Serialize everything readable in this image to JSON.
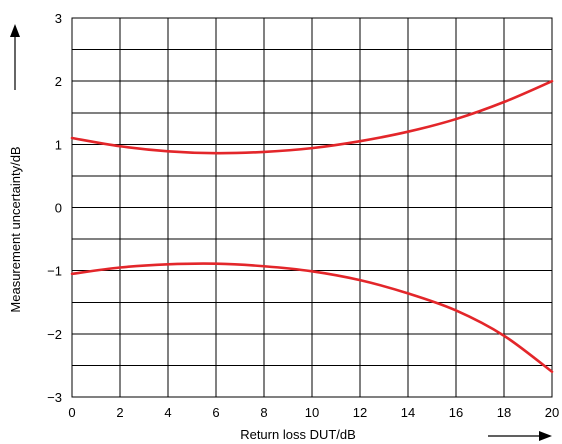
{
  "chart_data": {
    "type": "line",
    "xlabel": "Return loss DUT/dB",
    "ylabel": "Measurement uncertainty/dB",
    "xlim": [
      0,
      20
    ],
    "ylim": [
      -3,
      3
    ],
    "x_ticks": [
      "0",
      "2",
      "4",
      "6",
      "8",
      "10",
      "12",
      "14",
      "16",
      "18",
      "20"
    ],
    "y_ticks": [
      "3",
      "2",
      "1",
      "0",
      "−1",
      "−2",
      "−3"
    ],
    "grid": true,
    "series_color": "#e3262a",
    "series": [
      {
        "x": [
          0,
          2,
          4,
          6,
          8,
          10,
          12,
          14,
          16,
          18,
          20
        ],
        "y": [
          1.1,
          0.97,
          0.89,
          0.86,
          0.88,
          0.94,
          1.05,
          1.2,
          1.4,
          1.67,
          2.0
        ]
      },
      {
        "x": [
          0,
          2,
          4,
          6,
          8,
          10,
          12,
          14,
          16,
          18,
          20
        ],
        "y": [
          -1.05,
          -0.95,
          -0.9,
          -0.89,
          -0.93,
          -1.01,
          -1.15,
          -1.36,
          -1.63,
          -2.03,
          -2.6
        ]
      }
    ]
  }
}
